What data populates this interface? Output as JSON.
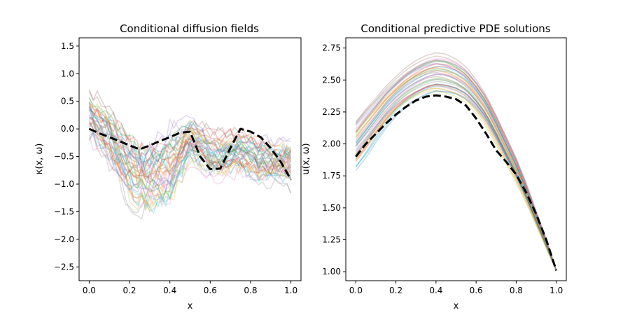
{
  "chart_data": [
    {
      "type": "line",
      "title": "Conditional diffusion fields",
      "xlabel": "x",
      "ylabel": "κ(x, ω)",
      "xlim": [
        -0.05,
        1.05
      ],
      "ylim": [
        -2.75,
        1.65
      ],
      "xticks": [
        "0.0",
        "0.2",
        "0.4",
        "0.6",
        "0.8",
        "1.0"
      ],
      "yticks": [
        "1.5",
        "1.0",
        "0.5",
        "0.0",
        "−0.5",
        "−1.0",
        "−1.5",
        "−2.0",
        "−2.5"
      ],
      "grid": false,
      "legend": "none",
      "reference": {
        "style": "black dashed",
        "x": [
          0.0,
          0.05,
          0.1,
          0.15,
          0.2,
          0.25,
          0.3,
          0.35,
          0.4,
          0.45,
          0.5,
          0.55,
          0.6,
          0.65,
          0.7,
          0.75,
          0.8,
          0.85,
          0.9,
          0.95,
          1.0
        ],
        "y": [
          0.0,
          -0.08,
          -0.15,
          -0.22,
          -0.3,
          -0.37,
          -0.3,
          -0.22,
          -0.15,
          -0.07,
          -0.05,
          -0.5,
          -0.73,
          -0.72,
          -0.35,
          0.0,
          -0.05,
          -0.15,
          -0.35,
          -0.6,
          -0.92
        ]
      },
      "samples": {
        "count": 40,
        "style": "translucent multi-colored",
        "x": [
          0.0,
          0.05,
          0.1,
          0.15,
          0.2,
          0.25,
          0.3,
          0.35,
          0.4,
          0.45,
          0.5,
          0.55,
          0.6,
          0.65,
          0.7,
          0.75,
          0.8,
          0.85,
          0.9,
          0.95,
          1.0
        ],
        "mean": [
          0.25,
          0.05,
          -0.15,
          -0.45,
          -0.75,
          -0.95,
          -0.9,
          -0.8,
          -0.7,
          -0.45,
          -0.2,
          -0.3,
          -0.45,
          -0.5,
          -0.45,
          -0.4,
          -0.5,
          -0.55,
          -0.6,
          -0.6,
          -0.65
        ],
        "spread": [
          0.4,
          0.4,
          0.45,
          0.45,
          0.55,
          0.55,
          0.55,
          0.55,
          0.6,
          0.45,
          0.35,
          0.35,
          0.35,
          0.35,
          0.35,
          0.35,
          0.35,
          0.35,
          0.35,
          0.35,
          0.4
        ]
      }
    },
    {
      "type": "line",
      "title": "Conditional predictive PDE solutions",
      "xlabel": "x",
      "ylabel": "u(x, ω)",
      "xlim": [
        -0.05,
        1.05
      ],
      "ylim": [
        0.93,
        2.83
      ],
      "xticks": [
        "0.0",
        "0.2",
        "0.4",
        "0.6",
        "0.8",
        "1.0"
      ],
      "yticks": [
        "2.75",
        "2.50",
        "2.25",
        "2.00",
        "1.75",
        "1.50",
        "1.25",
        "1.00"
      ],
      "grid": false,
      "legend": "none",
      "reference": {
        "style": "black dashed",
        "x": [
          0.0,
          0.05,
          0.1,
          0.15,
          0.2,
          0.25,
          0.3,
          0.35,
          0.4,
          0.45,
          0.5,
          0.55,
          0.6,
          0.65,
          0.7,
          0.75,
          0.8,
          0.85,
          0.9,
          0.95,
          1.0
        ],
        "y": [
          1.9,
          2.0,
          2.08,
          2.16,
          2.23,
          2.29,
          2.34,
          2.37,
          2.38,
          2.37,
          2.35,
          2.3,
          2.2,
          2.08,
          1.95,
          1.86,
          1.76,
          1.62,
          1.45,
          1.25,
          1.01
        ]
      },
      "samples": {
        "count": 40,
        "style": "translucent multi-colored",
        "end_value": 1.01,
        "x": [
          0.0,
          0.05,
          0.1,
          0.15,
          0.2,
          0.25,
          0.3,
          0.35,
          0.4,
          0.45,
          0.5,
          0.55,
          0.6,
          0.65,
          0.7,
          0.75,
          0.8,
          0.85,
          0.9,
          0.95,
          1.0
        ],
        "mean": [
          2.0,
          2.1,
          2.2,
          2.3,
          2.38,
          2.45,
          2.5,
          2.54,
          2.56,
          2.55,
          2.52,
          2.47,
          2.38,
          2.27,
          2.12,
          1.96,
          1.8,
          1.62,
          1.42,
          1.22,
          1.01
        ],
        "spread": [
          0.2,
          0.2,
          0.18,
          0.17,
          0.16,
          0.16,
          0.16,
          0.16,
          0.16,
          0.16,
          0.15,
          0.14,
          0.13,
          0.12,
          0.11,
          0.1,
          0.09,
          0.07,
          0.05,
          0.03,
          0.0
        ]
      }
    }
  ],
  "colors": {
    "palette": [
      "#1f77b4",
      "#ff7f0e",
      "#2ca02c",
      "#d62728",
      "#9467bd",
      "#8c564b",
      "#e377c2",
      "#7f7f7f",
      "#bcbd22",
      "#17becf"
    ],
    "reference": "#000000",
    "sample_alpha": 0.25
  }
}
